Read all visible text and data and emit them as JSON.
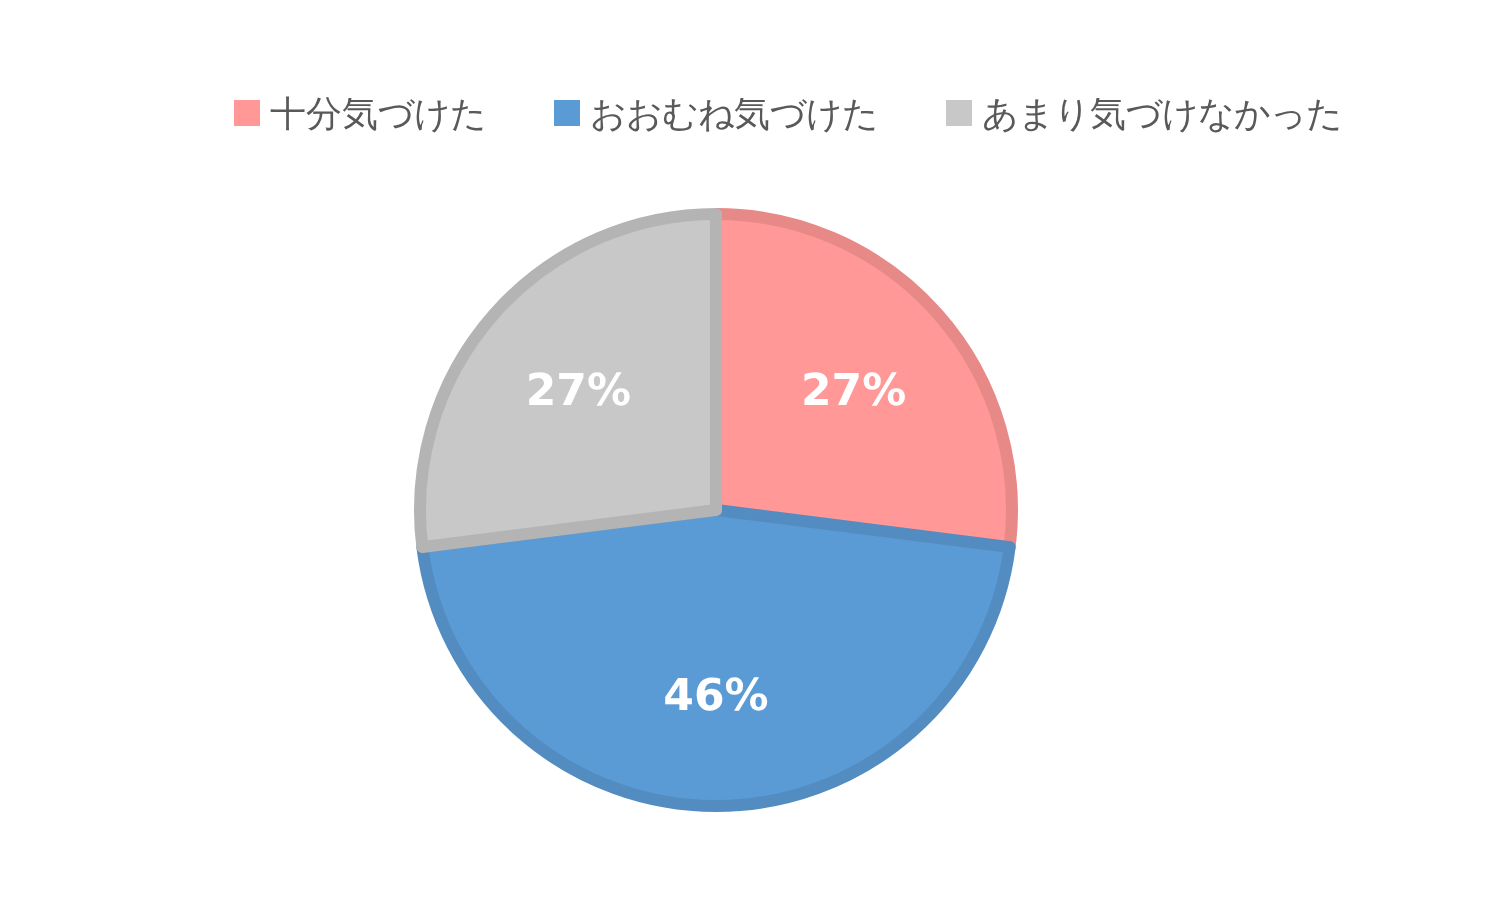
{
  "chart_data": {
    "type": "pie",
    "categories": [
      "十分気づけた",
      "おおむね気づけた",
      "あまり気づけなかった"
    ],
    "values": [
      27,
      46,
      27
    ],
    "colors": [
      "#ff9896",
      "#5b9bd5",
      "#c8c8c8"
    ],
    "value_labels": [
      "27%",
      "46%",
      "27%"
    ],
    "legend": "top"
  }
}
